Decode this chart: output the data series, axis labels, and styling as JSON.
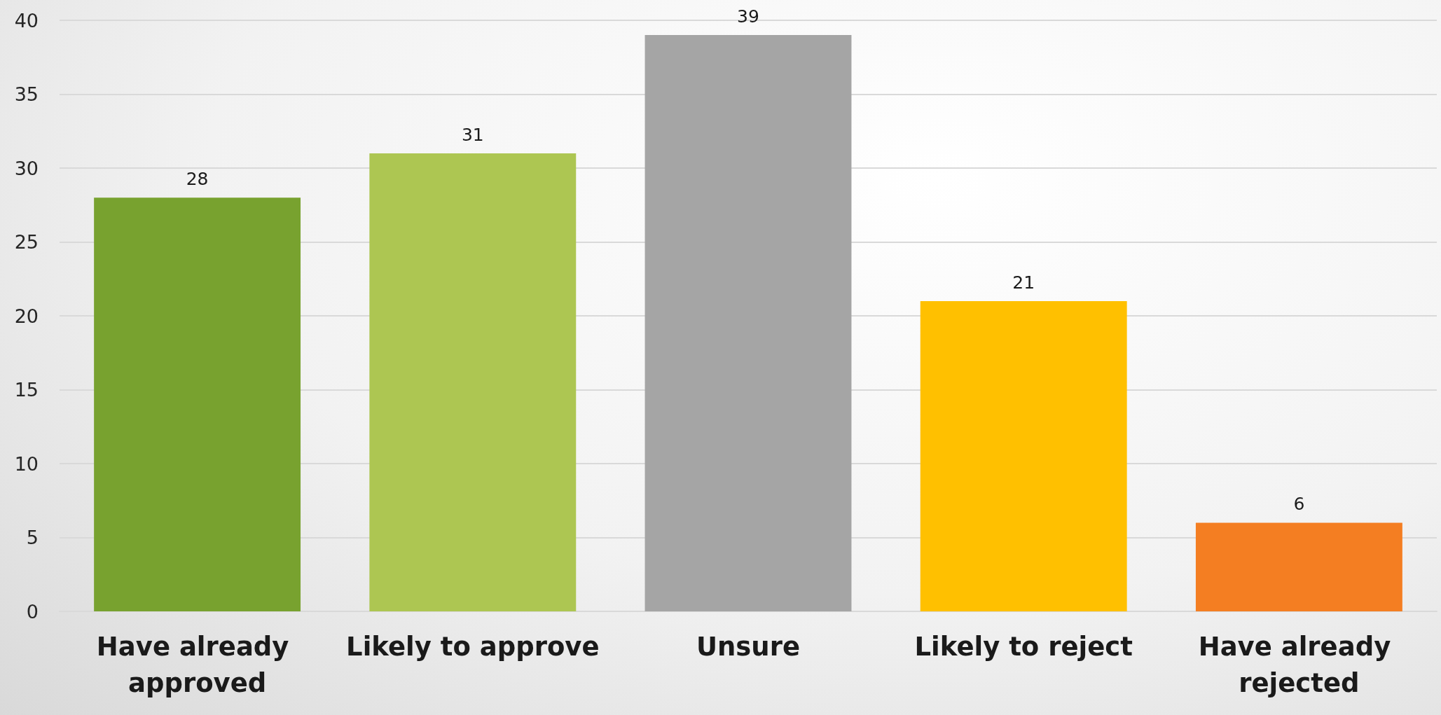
{
  "chart_data": {
    "type": "bar",
    "categories": [
      "Have already approved",
      "Likely to approve",
      "Unsure",
      "Likely to reject",
      "Have already rejected"
    ],
    "values": [
      28,
      31,
      39,
      21,
      6
    ],
    "colors": [
      "#78a22f",
      "#adc652",
      "#a5a5a5",
      "#ffc000",
      "#f47e22"
    ],
    "ylim": [
      0,
      40
    ],
    "yticks": [
      0,
      5,
      10,
      15,
      20,
      25,
      30,
      35,
      40
    ],
    "grid": "y",
    "data_labels": true
  }
}
